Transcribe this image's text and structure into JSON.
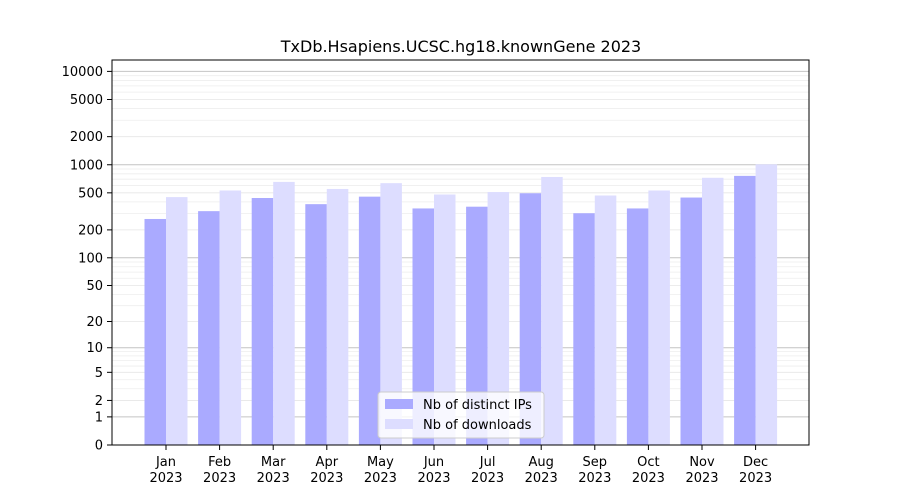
{
  "chart_data": {
    "type": "bar",
    "title": "TxDb.Hsapiens.UCSC.hg18.knownGene 2023",
    "xlabel": "",
    "ylabel": "",
    "y_scale": "log (with 0 baseline)",
    "y_ticks": [
      {
        "value": 0,
        "label": "0"
      },
      {
        "value": 1,
        "label": "1"
      },
      {
        "value": 2,
        "label": "2"
      },
      {
        "value": 5,
        "label": "5"
      },
      {
        "value": 10,
        "label": "10"
      },
      {
        "value": 20,
        "label": "20"
      },
      {
        "value": 50,
        "label": "50"
      },
      {
        "value": 100,
        "label": "100"
      },
      {
        "value": 200,
        "label": "200"
      },
      {
        "value": 500,
        "label": "500"
      },
      {
        "value": 1000,
        "label": "1000"
      },
      {
        "value": 2000,
        "label": "2000"
      },
      {
        "value": 5000,
        "label": "5000"
      },
      {
        "value": 10000,
        "label": "10000"
      }
    ],
    "ylim": [
      0,
      13000
    ],
    "categories": [
      {
        "month": "Jan",
        "year": "2023"
      },
      {
        "month": "Feb",
        "year": "2023"
      },
      {
        "month": "Mar",
        "year": "2023"
      },
      {
        "month": "Apr",
        "year": "2023"
      },
      {
        "month": "May",
        "year": "2023"
      },
      {
        "month": "Jun",
        "year": "2023"
      },
      {
        "month": "Jul",
        "year": "2023"
      },
      {
        "month": "Aug",
        "year": "2023"
      },
      {
        "month": "Sep",
        "year": "2023"
      },
      {
        "month": "Oct",
        "year": "2023"
      },
      {
        "month": "Nov",
        "year": "2023"
      },
      {
        "month": "Dec",
        "year": "2023"
      }
    ],
    "series": [
      {
        "name": "Nb of distinct IPs",
        "color": "#aaaaff",
        "values": [
          262,
          318,
          440,
          378,
          455,
          340,
          355,
          495,
          302,
          340,
          445,
          760
        ]
      },
      {
        "name": "Nb of downloads",
        "color": "#ddddff",
        "values": [
          450,
          530,
          655,
          550,
          635,
          480,
          510,
          740,
          468,
          530,
          725,
          1010
        ]
      }
    ],
    "grid": "horizontal",
    "legend_position": "bottom-center"
  }
}
